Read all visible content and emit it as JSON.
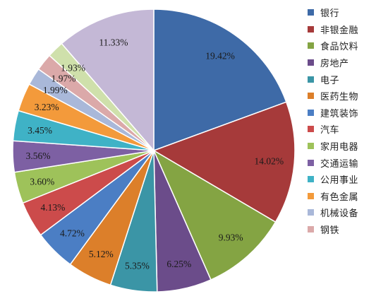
{
  "chart_data": {
    "type": "pie",
    "title": "",
    "legend_position": "right",
    "slices": [
      {
        "name": "银行",
        "value": 19.42,
        "label": "19.42%",
        "color": "#3e6aa7"
      },
      {
        "name": "非银金融",
        "value": 14.02,
        "label": "14.02%",
        "color": "#a63a3a"
      },
      {
        "name": "食品饮料",
        "value": 9.93,
        "label": "9.93%",
        "color": "#84a443"
      },
      {
        "name": "房地产",
        "value": 6.25,
        "label": "6.25%",
        "color": "#6b4c8a"
      },
      {
        "name": "电子",
        "value": 5.35,
        "label": "5.35%",
        "color": "#3b95a6"
      },
      {
        "name": "医药生物",
        "value": 5.12,
        "label": "5.12%",
        "color": "#dc7f2a"
      },
      {
        "name": "建筑装饰",
        "value": 4.72,
        "label": "4.72%",
        "color": "#4b7ec4"
      },
      {
        "name": "汽车",
        "value": 4.13,
        "label": "4.13%",
        "color": "#cc4b4b"
      },
      {
        "name": "家用电器",
        "value": 3.6,
        "label": "3.60%",
        "color": "#9ec25a"
      },
      {
        "name": "交通运输",
        "value": 3.56,
        "label": "3.56%",
        "color": "#7d60a3"
      },
      {
        "name": "公用事业",
        "value": 3.45,
        "label": "3.45%",
        "color": "#3fb2c6"
      },
      {
        "name": "有色金属",
        "value": 3.23,
        "label": "3.23%",
        "color": "#f39a3b"
      },
      {
        "name": "机械设备",
        "value": 1.99,
        "label": "1.99%",
        "color": "#a9b8d9"
      },
      {
        "name": "钢铁",
        "value": 1.97,
        "label": "1.97%",
        "color": "#dba9a9"
      },
      {
        "name": "",
        "value": 1.93,
        "label": "1.93%",
        "color": "#cfe0ab"
      },
      {
        "name": "",
        "value": 11.33,
        "label": "11.33%",
        "color": "#c4b8d6"
      }
    ]
  }
}
